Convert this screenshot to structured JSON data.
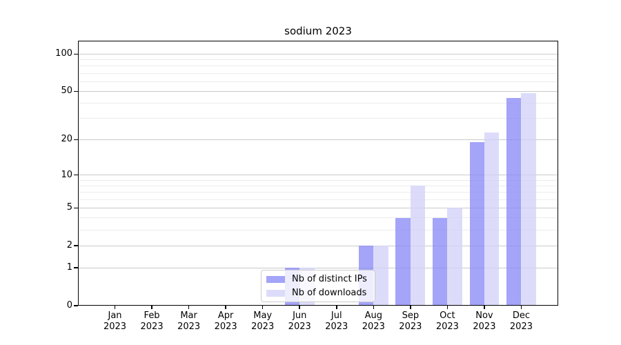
{
  "title": "sodium 2023",
  "chart_data": {
    "type": "bar",
    "title": "sodium 2023",
    "xlabel": "",
    "ylabel": "",
    "categories": [
      "Jan 2023",
      "Feb 2023",
      "Mar 2023",
      "Apr 2023",
      "May 2023",
      "Jun 2023",
      "Jul 2023",
      "Aug 2023",
      "Sep 2023",
      "Oct 2023",
      "Nov 2023",
      "Dec 2023"
    ],
    "series": [
      {
        "name": "Nb of distinct IPs",
        "color": "rgba(138,138,246,0.78)",
        "values": [
          0,
          0,
          0,
          0,
          0,
          1,
          0,
          2,
          4,
          4,
          19,
          44
        ]
      },
      {
        "name": "Nb of downloads",
        "color": "rgba(210,210,249,0.78)",
        "values": [
          0,
          0,
          0,
          0,
          0,
          1,
          0,
          2,
          8,
          5,
          23,
          48
        ]
      }
    ],
    "y_scale": "log1p",
    "ylim": [
      0,
      128
    ],
    "y_ticks": [
      0,
      1,
      2,
      5,
      10,
      20,
      50,
      100
    ],
    "y_minor_ticks": [
      3,
      4,
      6,
      7,
      8,
      9,
      30,
      40,
      60,
      70,
      80,
      90
    ],
    "grid": {
      "visible": true,
      "major_color": "#c9c9c9",
      "minor_color": "#ececec"
    },
    "legend_position": "lower-center",
    "axes_color": "#000000",
    "background_color": "#ffffff"
  }
}
